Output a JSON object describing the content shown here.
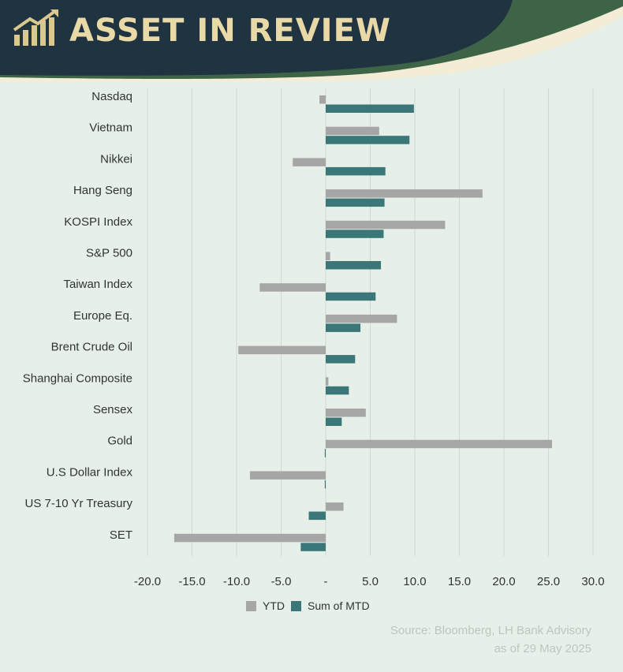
{
  "header": {
    "title": "ASSET IN REVIEW",
    "logo_icon": "rising-bar-chart-icon"
  },
  "colors": {
    "ytd": "#a6a6a6",
    "mtd": "#3b7679",
    "grid": "#cfd8d1",
    "background": "#e6f0e8",
    "banner": "#1f3340",
    "title": "#e9d9a6"
  },
  "chart_data": {
    "type": "bar",
    "orientation": "horizontal",
    "categories": [
      "Nasdaq",
      "Vietnam",
      "Nikkei",
      "Hang Seng",
      "KOSPI Index",
      "S&P 500",
      "Taiwan Index",
      "Europe Eq.",
      "Brent Crude Oil",
      "Shanghai Composite",
      "Sensex",
      "Gold",
      "U.S Dollar Index",
      "US 7-10 Yr Treasury",
      "SET"
    ],
    "series": [
      {
        "name": "YTD",
        "values": [
          -0.7,
          6.0,
          -3.7,
          17.6,
          13.4,
          0.5,
          -7.4,
          8.0,
          -9.8,
          0.3,
          4.5,
          25.4,
          -8.5,
          2.0,
          -17.0
        ]
      },
      {
        "name": "Sum of MTD",
        "values": [
          9.9,
          9.4,
          6.7,
          6.6,
          6.5,
          6.2,
          5.6,
          3.9,
          3.3,
          2.6,
          1.8,
          -0.1,
          -0.1,
          -1.9,
          -2.8
        ]
      }
    ],
    "xlim": [
      -20,
      30
    ],
    "xticks": [
      "-20.0",
      "-15.0",
      "-10.0",
      "-5.0",
      "-",
      "5.0",
      "10.0",
      "15.0",
      "20.0",
      "25.0",
      "30.0"
    ],
    "xtick_values": [
      -20,
      -15,
      -10,
      -5,
      0,
      5,
      10,
      15,
      20,
      25,
      30
    ],
    "grid": true,
    "legend": "bottom"
  },
  "source": {
    "line1": "Source: Bloomberg, LH Bank Advisory",
    "line2": "as of 29 May 2025"
  }
}
